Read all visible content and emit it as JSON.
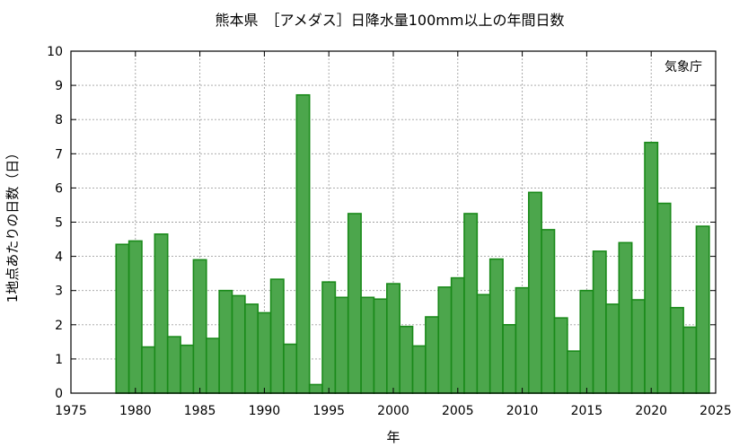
{
  "chart_data": {
    "type": "bar",
    "title": "熊本県　［アメダス］日降水量100mm以上の年間日数",
    "xlabel": "年",
    "ylabel": "1地点あたりの日数（日）",
    "source": "気象庁",
    "xlim": [
      1975,
      2025
    ],
    "ylim": [
      0,
      10
    ],
    "xticks": [
      "1975",
      "1980",
      "1985",
      "1990",
      "1995",
      "2000",
      "2005",
      "2010",
      "2015",
      "2020",
      "2025"
    ],
    "yticks": [
      "0",
      "1",
      "2",
      "3",
      "4",
      "5",
      "6",
      "7",
      "8",
      "9",
      "10"
    ],
    "grid": true,
    "colors": {
      "bar_fill": "#4ca64c",
      "bar_stroke": "#1a8a1a",
      "grid": "#a0a0a0"
    },
    "years": [
      1979,
      1980,
      1981,
      1982,
      1983,
      1984,
      1985,
      1986,
      1987,
      1988,
      1989,
      1990,
      1991,
      1992,
      1993,
      1994,
      1995,
      1996,
      1997,
      1998,
      1999,
      2000,
      2001,
      2002,
      2003,
      2004,
      2005,
      2006,
      2007,
      2008,
      2009,
      2010,
      2011,
      2012,
      2013,
      2014,
      2015,
      2016,
      2017,
      2018,
      2019,
      2020,
      2021,
      2022,
      2023,
      2024
    ],
    "values": [
      4.35,
      4.45,
      1.35,
      4.65,
      1.65,
      1.4,
      3.9,
      1.6,
      3.0,
      2.85,
      2.6,
      2.35,
      3.33,
      1.43,
      8.72,
      0.25,
      3.25,
      2.8,
      5.25,
      2.8,
      2.75,
      3.2,
      1.95,
      1.38,
      2.23,
      3.1,
      3.37,
      5.25,
      2.88,
      3.92,
      2.0,
      3.08,
      5.87,
      4.78,
      2.2,
      1.23,
      3.0,
      4.15,
      2.6,
      4.4,
      2.73,
      7.33,
      5.55,
      2.5,
      1.93,
      4.88
    ]
  }
}
